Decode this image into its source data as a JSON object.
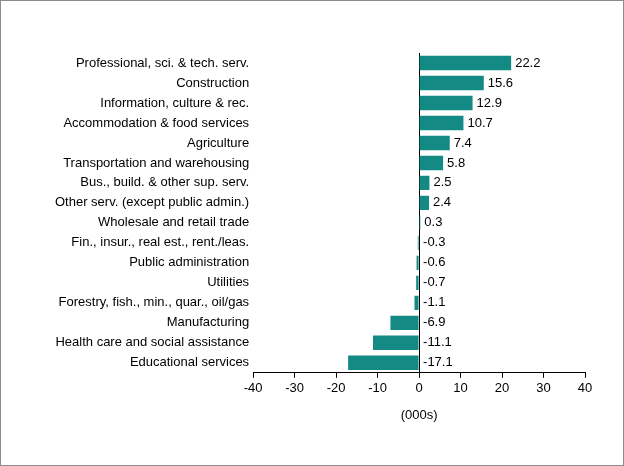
{
  "chart_data": {
    "type": "bar",
    "orientation": "horizontal",
    "categories": [
      "Professional, sci. & tech. serv.",
      "Construction",
      "Information, culture & rec.",
      "Accommodation & food services",
      "Agriculture",
      "Transportation and warehousing",
      "Bus., build. & other sup. serv.",
      "Other serv. (except public admin.)",
      "Wholesale and retail trade",
      "Fin., insur., real est., rent./leas.",
      "Public administration",
      "Utilities",
      "Forestry, fish., min., quar., oil/gas",
      "Manufacturing",
      "Health care and social assistance",
      "Educational services"
    ],
    "values": [
      22.2,
      15.6,
      12.9,
      10.7,
      7.4,
      5.8,
      2.5,
      2.4,
      0.3,
      -0.3,
      -0.6,
      -0.7,
      -1.1,
      -6.9,
      -11.1,
      -17.1
    ],
    "color": "#148a85",
    "xlabel": "(000s)",
    "xlim": [
      -40,
      40
    ],
    "xticks": [
      -40,
      -30,
      -20,
      -10,
      0,
      10,
      20,
      30,
      40
    ],
    "data_labels": true,
    "grid": false
  }
}
